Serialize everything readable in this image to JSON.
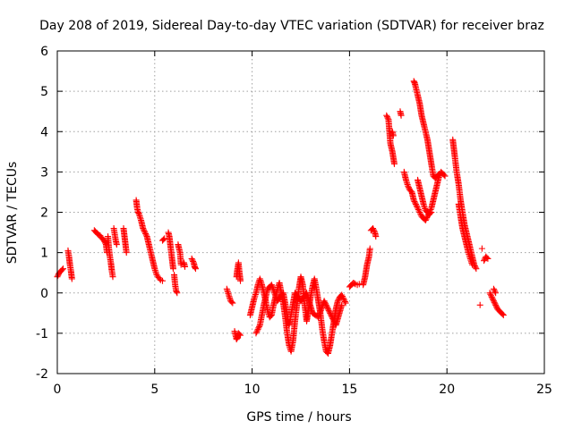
{
  "chart_data": {
    "type": "scatter",
    "title": "Day 208 of 2019, Sidereal Day-to-day VTEC variation (SDTVAR) for receiver braz",
    "xlabel": "GPS time / hours",
    "ylabel": "SDTVAR / TECUs",
    "xlim": [
      0,
      25
    ],
    "ylim": [
      -2,
      6
    ],
    "xticks": [
      0,
      5,
      10,
      15,
      20,
      25
    ],
    "yticks": [
      -2,
      -1,
      0,
      1,
      2,
      3,
      4,
      5,
      6
    ],
    "grid": true,
    "marker": "+",
    "color": "#ff0000",
    "segments": [
      [
        [
          0.0,
          0.4
        ],
        [
          0.1,
          0.5
        ],
        [
          0.2,
          0.55
        ],
        [
          0.3,
          0.6
        ]
      ],
      [
        [
          0.55,
          1.05
        ],
        [
          0.6,
          0.9
        ],
        [
          0.65,
          0.7
        ],
        [
          0.7,
          0.55
        ],
        [
          0.75,
          0.35
        ]
      ],
      [
        [
          1.9,
          1.55
        ],
        [
          2.0,
          1.5
        ],
        [
          2.1,
          1.45
        ],
        [
          2.2,
          1.42
        ],
        [
          2.3,
          1.35
        ],
        [
          2.4,
          1.3
        ],
        [
          2.5,
          1.2
        ],
        [
          2.55,
          1.0
        ]
      ],
      [
        [
          2.6,
          1.4
        ],
        [
          2.65,
          1.1
        ],
        [
          2.7,
          0.9
        ],
        [
          2.75,
          0.75
        ],
        [
          2.8,
          0.55
        ],
        [
          2.85,
          0.4
        ]
      ],
      [
        [
          2.9,
          1.6
        ],
        [
          2.95,
          1.45
        ],
        [
          3.0,
          1.3
        ],
        [
          3.05,
          1.2
        ]
      ],
      [
        [
          3.4,
          1.6
        ],
        [
          3.45,
          1.4
        ],
        [
          3.5,
          1.2
        ],
        [
          3.55,
          1.0
        ]
      ],
      [
        [
          4.05,
          2.3
        ],
        [
          4.1,
          2.1
        ],
        [
          4.15,
          2.0
        ],
        [
          4.2,
          1.95
        ],
        [
          4.3,
          1.8
        ],
        [
          4.4,
          1.6
        ],
        [
          4.5,
          1.5
        ],
        [
          4.6,
          1.4
        ],
        [
          4.7,
          1.2
        ],
        [
          4.8,
          1.0
        ],
        [
          4.9,
          0.8
        ],
        [
          5.0,
          0.6
        ],
        [
          5.1,
          0.45
        ],
        [
          5.2,
          0.38
        ],
        [
          5.3,
          0.32
        ],
        [
          5.4,
          0.3
        ]
      ],
      [
        [
          5.4,
          1.3
        ],
        [
          5.5,
          1.35
        ]
      ],
      [
        [
          5.7,
          1.5
        ],
        [
          5.75,
          1.4
        ],
        [
          5.8,
          1.2
        ],
        [
          5.85,
          1.0
        ],
        [
          5.9,
          0.8
        ],
        [
          5.95,
          0.6
        ]
      ],
      [
        [
          6.0,
          0.45
        ],
        [
          6.05,
          0.2
        ],
        [
          6.1,
          0.05
        ],
        [
          6.15,
          0.0
        ]
      ],
      [
        [
          6.2,
          1.2
        ],
        [
          6.3,
          1.0
        ],
        [
          6.35,
          0.7
        ]
      ],
      [
        [
          6.5,
          0.75
        ],
        [
          6.55,
          0.65
        ]
      ],
      [
        [
          6.9,
          0.85
        ],
        [
          7.0,
          0.75
        ],
        [
          7.05,
          0.65
        ],
        [
          7.1,
          0.6
        ]
      ],
      [
        [
          8.7,
          0.1
        ],
        [
          8.8,
          -0.05
        ],
        [
          8.9,
          -0.2
        ],
        [
          9.0,
          -0.25
        ]
      ],
      [
        [
          9.1,
          -0.95
        ],
        [
          9.15,
          -1.05
        ],
        [
          9.2,
          -1.15
        ],
        [
          9.25,
          -1.1
        ],
        [
          9.3,
          -1.0
        ],
        [
          9.4,
          -1.05
        ]
      ],
      [
        [
          9.2,
          0.4
        ],
        [
          9.25,
          0.6
        ],
        [
          9.3,
          0.75
        ],
        [
          9.35,
          0.5
        ],
        [
          9.4,
          0.3
        ]
      ],
      [
        [
          9.9,
          -0.55
        ],
        [
          10.0,
          -0.35
        ],
        [
          10.1,
          -0.15
        ],
        [
          10.2,
          0.0
        ],
        [
          10.3,
          0.2
        ],
        [
          10.4,
          0.35
        ],
        [
          10.5,
          0.2
        ],
        [
          10.6,
          0.0
        ],
        [
          10.7,
          -0.2
        ],
        [
          10.8,
          -0.45
        ],
        [
          10.9,
          -0.6
        ],
        [
          11.0,
          -0.55
        ],
        [
          11.1,
          -0.3
        ],
        [
          11.2,
          -0.1
        ],
        [
          11.3,
          0.1
        ],
        [
          11.4,
          0.25
        ],
        [
          11.5,
          0.0
        ],
        [
          11.6,
          -0.25
        ],
        [
          11.7,
          -0.6
        ],
        [
          11.8,
          -1.0
        ],
        [
          11.9,
          -1.3
        ],
        [
          12.0,
          -1.45
        ],
        [
          12.1,
          -1.2
        ],
        [
          12.2,
          -0.7
        ],
        [
          12.3,
          -0.3
        ],
        [
          12.4,
          0.1
        ],
        [
          12.5,
          0.4
        ],
        [
          12.6,
          0.2
        ],
        [
          12.7,
          -0.3
        ],
        [
          12.8,
          -0.7
        ],
        [
          12.9,
          -0.4
        ],
        [
          13.0,
          -0.1
        ],
        [
          13.1,
          0.15
        ],
        [
          13.2,
          0.35
        ],
        [
          13.3,
          0.1
        ],
        [
          13.4,
          -0.2
        ],
        [
          13.5,
          -0.5
        ],
        [
          13.6,
          -0.9
        ],
        [
          13.7,
          -1.2
        ],
        [
          13.8,
          -1.45
        ],
        [
          13.9,
          -1.5
        ],
        [
          14.0,
          -1.3
        ],
        [
          14.1,
          -1.0
        ],
        [
          14.2,
          -0.7
        ],
        [
          14.3,
          -0.4
        ],
        [
          14.4,
          -0.2
        ],
        [
          14.5,
          -0.1
        ],
        [
          14.6,
          -0.05
        ],
        [
          14.7,
          -0.15
        ],
        [
          14.8,
          -0.25
        ]
      ],
      [
        [
          10.2,
          -1.0
        ],
        [
          10.4,
          -0.8
        ],
        [
          10.6,
          -0.3
        ],
        [
          10.8,
          0.1
        ],
        [
          11.0,
          0.2
        ],
        [
          11.3,
          -0.2
        ],
        [
          11.6,
          0.0
        ],
        [
          11.9,
          -0.8
        ],
        [
          12.2,
          0.0
        ],
        [
          12.5,
          -0.2
        ],
        [
          12.8,
          0.0
        ],
        [
          13.1,
          -0.5
        ],
        [
          13.4,
          -0.6
        ],
        [
          13.7,
          -0.2
        ],
        [
          14.0,
          -0.5
        ],
        [
          14.3,
          -0.8
        ],
        [
          14.6,
          -0.3
        ]
      ],
      [
        [
          15.0,
          0.15
        ],
        [
          15.1,
          0.2
        ],
        [
          15.2,
          0.25
        ],
        [
          15.3,
          0.22
        ],
        [
          15.4,
          0.2
        ],
        [
          15.5,
          0.22
        ]
      ],
      [
        [
          15.7,
          0.2
        ],
        [
          15.8,
          0.4
        ],
        [
          15.9,
          0.7
        ],
        [
          16.0,
          0.9
        ],
        [
          16.05,
          1.1
        ]
      ],
      [
        [
          16.1,
          1.55
        ],
        [
          16.2,
          1.6
        ],
        [
          16.3,
          1.5
        ],
        [
          16.35,
          1.4
        ]
      ],
      [
        [
          16.9,
          4.4
        ],
        [
          17.0,
          4.3
        ],
        [
          17.1,
          3.7
        ],
        [
          17.2,
          3.5
        ],
        [
          17.3,
          3.2
        ]
      ],
      [
        [
          17.2,
          4.0
        ],
        [
          17.25,
          3.9
        ]
      ],
      [
        [
          17.6,
          4.5
        ],
        [
          17.65,
          4.4
        ]
      ],
      [
        [
          17.8,
          3.0
        ],
        [
          17.9,
          2.8
        ],
        [
          18.0,
          2.65
        ],
        [
          18.1,
          2.55
        ],
        [
          18.2,
          2.5
        ],
        [
          18.3,
          2.3
        ],
        [
          18.4,
          2.2
        ],
        [
          18.5,
          2.1
        ],
        [
          18.6,
          2.0
        ],
        [
          18.7,
          1.9
        ],
        [
          18.8,
          1.85
        ],
        [
          18.9,
          1.8
        ],
        [
          19.0,
          1.9
        ],
        [
          19.1,
          2.0
        ],
        [
          19.2,
          2.1
        ],
        [
          19.3,
          2.3
        ],
        [
          19.4,
          2.5
        ],
        [
          19.5,
          2.7
        ],
        [
          19.6,
          2.9
        ],
        [
          19.7,
          3.0
        ],
        [
          19.8,
          2.95
        ],
        [
          19.9,
          2.9
        ]
      ],
      [
        [
          18.3,
          5.25
        ],
        [
          18.35,
          5.2
        ],
        [
          18.4,
          5.1
        ],
        [
          18.5,
          4.9
        ],
        [
          18.6,
          4.7
        ],
        [
          18.7,
          4.4
        ],
        [
          18.8,
          4.2
        ],
        [
          18.9,
          4.0
        ],
        [
          19.0,
          3.8
        ],
        [
          19.1,
          3.5
        ],
        [
          19.2,
          3.2
        ],
        [
          19.3,
          2.9
        ],
        [
          19.4,
          2.85
        ],
        [
          19.5,
          2.9
        ],
        [
          19.6,
          2.95
        ]
      ],
      [
        [
          18.5,
          2.8
        ],
        [
          18.6,
          2.6
        ],
        [
          18.7,
          2.4
        ],
        [
          18.8,
          2.2
        ],
        [
          18.9,
          2.05
        ],
        [
          19.0,
          2.0
        ],
        [
          19.1,
          1.95
        ],
        [
          19.2,
          2.0
        ]
      ],
      [
        [
          20.3,
          3.8
        ],
        [
          20.35,
          3.6
        ],
        [
          20.4,
          3.4
        ],
        [
          20.5,
          3.0
        ],
        [
          20.6,
          2.7
        ],
        [
          20.7,
          2.3
        ],
        [
          20.8,
          2.0
        ],
        [
          20.9,
          1.7
        ],
        [
          21.0,
          1.5
        ],
        [
          21.1,
          1.3
        ],
        [
          21.2,
          1.1
        ],
        [
          21.3,
          0.9
        ],
        [
          21.4,
          0.7
        ],
        [
          21.5,
          0.6
        ]
      ],
      [
        [
          20.6,
          2.2
        ],
        [
          20.7,
          1.9
        ],
        [
          20.8,
          1.6
        ],
        [
          20.9,
          1.4
        ],
        [
          21.0,
          1.2
        ],
        [
          21.1,
          1.0
        ],
        [
          21.2,
          0.85
        ],
        [
          21.3,
          0.7
        ]
      ],
      [
        [
          21.7,
          -0.3
        ]
      ],
      [
        [
          21.8,
          1.1
        ]
      ],
      [
        [
          21.9,
          0.8
        ],
        [
          22.0,
          0.9
        ],
        [
          22.1,
          0.85
        ]
      ],
      [
        [
          22.2,
          0.0
        ],
        [
          22.3,
          -0.1
        ],
        [
          22.4,
          -0.2
        ],
        [
          22.5,
          -0.3
        ],
        [
          22.6,
          -0.4
        ],
        [
          22.7,
          -0.45
        ],
        [
          22.8,
          -0.5
        ],
        [
          22.9,
          -0.55
        ]
      ],
      [
        [
          22.4,
          0.1
        ],
        [
          22.5,
          0.0
        ]
      ]
    ]
  }
}
